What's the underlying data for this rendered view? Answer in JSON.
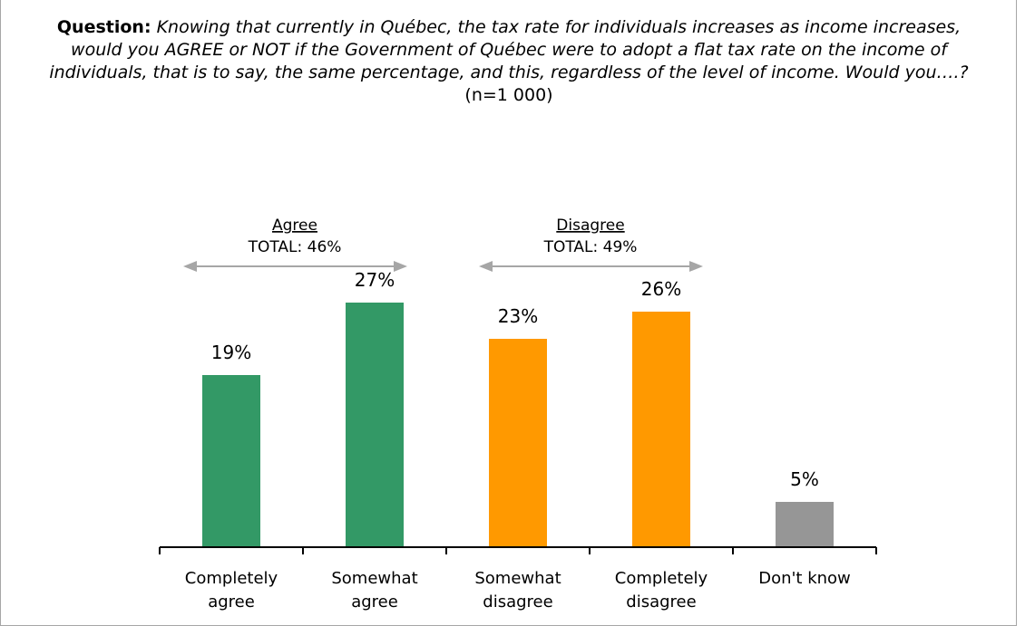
{
  "question": {
    "label": "Question:",
    "text": "Knowing that currently in Québec, the tax rate for individuals increases as income increases, would you AGREE or NOT if the Government of Québec were to adopt a flat tax rate on the income of individuals, that is to say, the same percentage, and this, regardless of the level of income.  Would you….?",
    "sample_size": "(n=1 000)"
  },
  "groups": [
    {
      "title": "Agree",
      "total": "TOTAL: 46%"
    },
    {
      "title": "Disagree",
      "total": "TOTAL: 49%"
    }
  ],
  "chart_data": {
    "type": "bar",
    "categories": [
      [
        "Completely",
        "agree"
      ],
      [
        "Somewhat",
        "agree"
      ],
      [
        "Somewhat",
        "disagree"
      ],
      [
        "Completely",
        "disagree"
      ],
      [
        "Don't know"
      ]
    ],
    "values": [
      19,
      27,
      23,
      26,
      5
    ],
    "value_labels": [
      "19%",
      "27%",
      "23%",
      "26%",
      "5%"
    ],
    "colors": [
      "#339966",
      "#339966",
      "#ff9900",
      "#ff9900",
      "#969696"
    ],
    "ylim": [
      0,
      30
    ]
  },
  "colors": {
    "agree": "#339966",
    "disagree": "#ff9900",
    "dont_know": "#969696",
    "arrow": "#a6a6a6",
    "frame": "#a6a6a6"
  }
}
